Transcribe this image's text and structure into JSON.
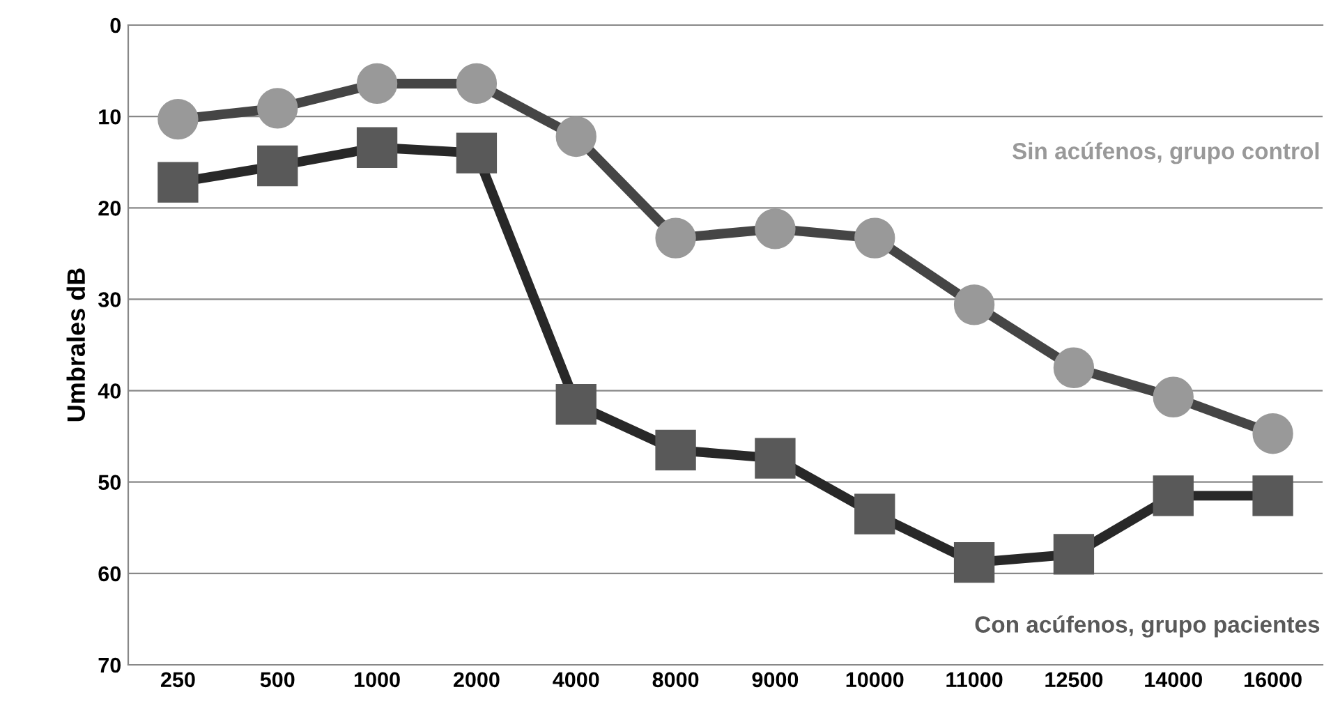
{
  "chart_data": {
    "type": "line",
    "ylabel": "Umbrales dB",
    "categories": [
      "250",
      "500",
      "1000",
      "2000",
      "4000",
      "8000",
      "9000",
      "10000",
      "11000",
      "12500",
      "14000",
      "16000"
    ],
    "series": [
      {
        "name": "Sin acúfenos, grupo control",
        "color": "#999999",
        "marker": "circle",
        "values": [
          10.3,
          9.1,
          6.4,
          6.4,
          12.2,
          23.3,
          22.3,
          23.3,
          30.6,
          37.5,
          40.7,
          44.7
        ]
      },
      {
        "name": "Con acúfenos, grupo pacientes",
        "color": "#595959",
        "marker": "square",
        "values": [
          17.2,
          15.4,
          13.4,
          14.0,
          41.5,
          46.5,
          47.4,
          53.5,
          58.8,
          57.9,
          51.5,
          51.5
        ]
      }
    ],
    "ylim": [
      70,
      0
    ],
    "yticks": [
      0,
      10,
      20,
      30,
      40,
      50,
      60,
      70
    ],
    "grid": "y",
    "legend": false
  }
}
